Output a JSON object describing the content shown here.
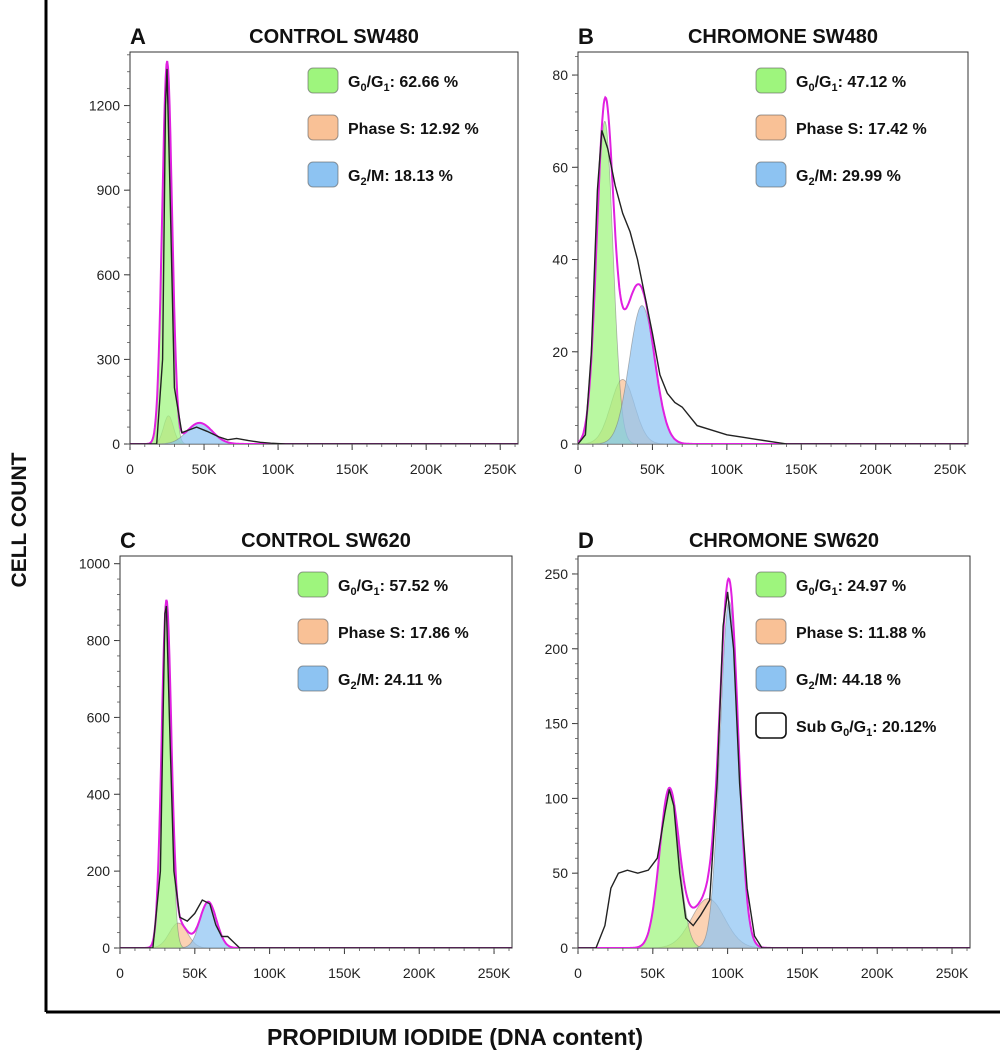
{
  "figure": {
    "ylabel": "CELL COUNT",
    "xlabel": "PROPIDIUM IODIDE (DNA content)"
  },
  "colors": {
    "g0g1": "#9EF57D",
    "s": "#F9C196",
    "g2m": "#8DC3F2",
    "fit": "#E020E0",
    "raw": "#222222",
    "sub": "#ffffff"
  },
  "chart_data": [
    {
      "id": "A",
      "type": "area",
      "panel_label": "A",
      "title": "CONTROL SW480",
      "xlim": [
        0,
        262000
      ],
      "ylim": [
        0,
        1390
      ],
      "xticks": [
        0,
        50000,
        100000,
        150000,
        200000,
        250000
      ],
      "xtick_labels": [
        "0",
        "50K",
        "100K",
        "150K",
        "200K",
        "250K"
      ],
      "yticks": [
        0,
        300,
        600,
        900,
        1200
      ],
      "ytick_labels": [
        "0",
        "300",
        "600",
        "900",
        "1200"
      ],
      "legend": [
        {
          "key": "g0g1",
          "main": "G",
          "sub1": "0",
          "mid": "/G",
          "sub2": "1",
          "tail": ": 62.66 %"
        },
        {
          "key": "s",
          "main": "Phase S: 12.92 %"
        },
        {
          "key": "g2m",
          "main": "G",
          "sub1": "2",
          "mid": "/M: 18.13 %"
        }
      ],
      "series": [
        {
          "name": "G0/G1",
          "key": "g0g1",
          "peak": 25000,
          "sigma": 3300,
          "height": 1260
        },
        {
          "name": "Phase S",
          "key": "s",
          "peak": 26000,
          "sigma": 3300,
          "height": 100
        },
        {
          "name": "G2/M",
          "key": "g2m",
          "peak": 47000,
          "sigma": 8500,
          "height": 75
        }
      ],
      "raw": [
        [
          0,
          0
        ],
        [
          18000,
          0
        ],
        [
          22000,
          300
        ],
        [
          24000,
          1200
        ],
        [
          25000,
          1330
        ],
        [
          27000,
          900
        ],
        [
          30000,
          200
        ],
        [
          35000,
          40
        ],
        [
          45000,
          60
        ],
        [
          52000,
          45
        ],
        [
          60000,
          25
        ],
        [
          66000,
          15
        ],
        [
          72000,
          20
        ],
        [
          80000,
          12
        ],
        [
          88000,
          6
        ],
        [
          95000,
          3
        ],
        [
          105000,
          0
        ],
        [
          262000,
          0
        ]
      ]
    },
    {
      "id": "B",
      "type": "area",
      "panel_label": "B",
      "title": "CHROMONE SW480",
      "xlim": [
        0,
        262000
      ],
      "ylim": [
        0,
        85
      ],
      "xticks": [
        0,
        50000,
        100000,
        150000,
        200000,
        250000
      ],
      "xtick_labels": [
        "0",
        "50K",
        "100K",
        "150K",
        "200K",
        "250K"
      ],
      "yticks": [
        0,
        20,
        40,
        60,
        80
      ],
      "ytick_labels": [
        "0",
        "20",
        "40",
        "60",
        "80"
      ],
      "legend": [
        {
          "key": "g0g1",
          "main": "G",
          "sub1": "0",
          "mid": "/G",
          "sub2": "1",
          "tail": ": 47.12 %"
        },
        {
          "key": "s",
          "main": "Phase S: 17.42 %"
        },
        {
          "key": "g2m",
          "main": "G",
          "sub1": "2",
          "mid": "/M: 29.99 %"
        }
      ],
      "series": [
        {
          "name": "G0/G1",
          "key": "g0g1",
          "peak": 18000,
          "sigma": 5500,
          "height": 70
        },
        {
          "name": "Phase S",
          "key": "s",
          "peak": 30000,
          "sigma": 8000,
          "height": 14
        },
        {
          "name": "G2/M",
          "key": "g2m",
          "peak": 43000,
          "sigma": 8500,
          "height": 30
        }
      ],
      "raw": [
        [
          0,
          0
        ],
        [
          5000,
          2
        ],
        [
          9000,
          20
        ],
        [
          13000,
          55
        ],
        [
          16000,
          68
        ],
        [
          20000,
          64
        ],
        [
          25000,
          56
        ],
        [
          30000,
          50
        ],
        [
          35000,
          46
        ],
        [
          40000,
          40
        ],
        [
          45000,
          32
        ],
        [
          50000,
          24
        ],
        [
          55000,
          15
        ],
        [
          60000,
          11
        ],
        [
          65000,
          9
        ],
        [
          70000,
          8
        ],
        [
          75000,
          6
        ],
        [
          80000,
          4
        ],
        [
          90000,
          3
        ],
        [
          100000,
          2
        ],
        [
          110000,
          1.5
        ],
        [
          120000,
          1
        ],
        [
          130000,
          0.5
        ],
        [
          140000,
          0
        ],
        [
          262000,
          0
        ]
      ]
    },
    {
      "id": "C",
      "type": "area",
      "panel_label": "C",
      "title": "CONTROL SW620",
      "xlim": [
        0,
        262000
      ],
      "ylim": [
        0,
        1020
      ],
      "xticks": [
        0,
        50000,
        100000,
        150000,
        200000,
        250000
      ],
      "xtick_labels": [
        "0",
        "50K",
        "100K",
        "150K",
        "200K",
        "250K"
      ],
      "yticks": [
        0,
        200,
        400,
        600,
        800,
        1000
      ],
      "ytick_labels": [
        "0",
        "200",
        "400",
        "600",
        "800",
        "1000"
      ],
      "legend": [
        {
          "key": "g0g1",
          "main": "G",
          "sub1": "0",
          "mid": "/G",
          "sub2": "1",
          "tail": ": 57.52 %"
        },
        {
          "key": "s",
          "main": "Phase S: 17.86 %"
        },
        {
          "key": "g2m",
          "main": "G",
          "sub1": "2",
          "mid": "/M: 24.11 %"
        }
      ],
      "series": [
        {
          "name": "G0/G1",
          "key": "g0g1",
          "peak": 31000,
          "sigma": 3200,
          "height": 880
        },
        {
          "name": "Phase S",
          "key": "s",
          "peak": 39000,
          "sigma": 6000,
          "height": 65
        },
        {
          "name": "G2/M",
          "key": "g2m",
          "peak": 59000,
          "sigma": 5500,
          "height": 120
        }
      ],
      "raw": [
        [
          0,
          0
        ],
        [
          22000,
          0
        ],
        [
          27000,
          200
        ],
        [
          30000,
          870
        ],
        [
          31000,
          890
        ],
        [
          33000,
          600
        ],
        [
          36000,
          200
        ],
        [
          40000,
          80
        ],
        [
          45000,
          70
        ],
        [
          50000,
          90
        ],
        [
          55000,
          125
        ],
        [
          60000,
          115
        ],
        [
          64000,
          60
        ],
        [
          68000,
          30
        ],
        [
          72000,
          30
        ],
        [
          76000,
          15
        ],
        [
          80000,
          0
        ],
        [
          262000,
          0
        ]
      ]
    },
    {
      "id": "D",
      "type": "area",
      "panel_label": "D",
      "title": "CHROMONE SW620",
      "xlim": [
        0,
        262000
      ],
      "ylim": [
        0,
        262
      ],
      "xticks": [
        0,
        50000,
        100000,
        150000,
        200000,
        250000
      ],
      "xtick_labels": [
        "0",
        "50K",
        "100K",
        "150K",
        "200K",
        "250K"
      ],
      "yticks": [
        0,
        50,
        100,
        150,
        200,
        250
      ],
      "ytick_labels": [
        "0",
        "50",
        "100",
        "150",
        "200",
        "250"
      ],
      "legend": [
        {
          "key": "g0g1",
          "main": "G",
          "sub1": "0",
          "mid": "/G",
          "sub2": "1",
          "tail": ": 24.97 %"
        },
        {
          "key": "s",
          "main": "Phase S: 11.88 %"
        },
        {
          "key": "g2m",
          "main": "G",
          "sub1": "2",
          "mid": "/M: 44.18 %"
        },
        {
          "key": "sub",
          "main": "Sub G",
          "sub1": "0",
          "mid": "/G",
          "sub2": "1",
          "tail": ": 20.12%"
        }
      ],
      "series": [
        {
          "name": "G0/G1",
          "key": "g0g1",
          "peak": 61000,
          "sigma": 6500,
          "height": 105
        },
        {
          "name": "Phase S",
          "key": "s",
          "peak": 87000,
          "sigma": 11000,
          "height": 33
        },
        {
          "name": "G2/M",
          "key": "g2m",
          "peak": 101000,
          "sigma": 6000,
          "height": 232
        }
      ],
      "raw": [
        [
          0,
          0
        ],
        [
          12000,
          0
        ],
        [
          18000,
          15
        ],
        [
          22000,
          40
        ],
        [
          27000,
          50
        ],
        [
          33000,
          52
        ],
        [
          40000,
          50
        ],
        [
          47000,
          52
        ],
        [
          53000,
          60
        ],
        [
          58000,
          90
        ],
        [
          61000,
          106
        ],
        [
          64000,
          95
        ],
        [
          68000,
          50
        ],
        [
          72000,
          20
        ],
        [
          77000,
          15
        ],
        [
          82000,
          22
        ],
        [
          88000,
          32
        ],
        [
          93000,
          110
        ],
        [
          97000,
          215
        ],
        [
          100000,
          238
        ],
        [
          104000,
          200
        ],
        [
          108000,
          110
        ],
        [
          113000,
          40
        ],
        [
          118000,
          8
        ],
        [
          123000,
          0
        ],
        [
          262000,
          0
        ]
      ]
    }
  ]
}
